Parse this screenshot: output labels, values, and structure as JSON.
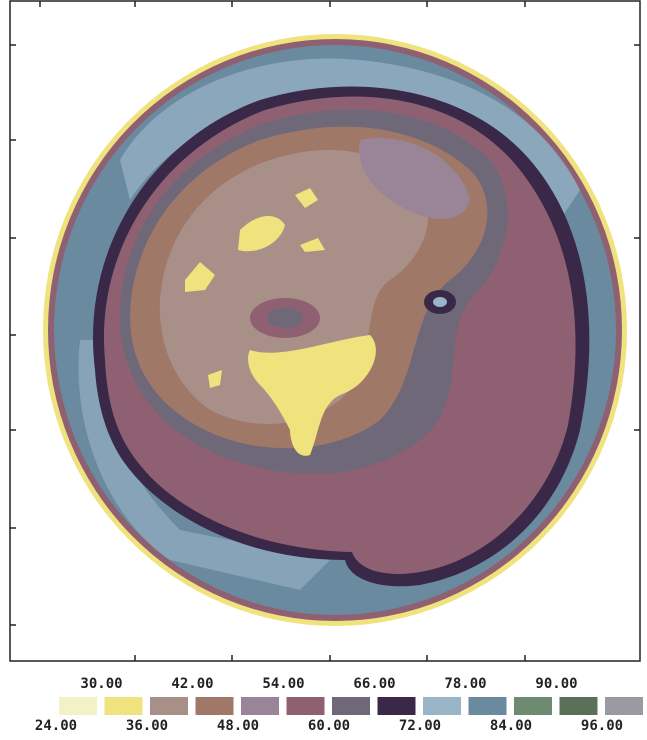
{
  "chart_data": {
    "type": "contour",
    "levels": [
      {
        "value": 24,
        "label": "24.00"
      },
      {
        "value": 30,
        "label": "30.00"
      },
      {
        "value": 36,
        "label": "36.00"
      },
      {
        "value": 42,
        "label": "42.00"
      },
      {
        "value": 48,
        "label": "48.00"
      },
      {
        "value": 54,
        "label": "54.00"
      },
      {
        "value": 60,
        "label": "60.00"
      },
      {
        "value": 66,
        "label": "66.00"
      },
      {
        "value": 72,
        "label": "72.00"
      },
      {
        "value": 78,
        "label": "78.00"
      },
      {
        "value": 84,
        "label": "84.00"
      },
      {
        "value": 90,
        "label": "90.00"
      },
      {
        "value": 96,
        "label": "96.00"
      }
    ],
    "colors": [
      "#f4f0c8",
      "#f0e27c",
      "#a89088",
      "#a07868",
      "#9a8598",
      "#8e6072",
      "#6e6878",
      "#3a2848",
      "#9ab4c8",
      "#6a8aa0",
      "#6e8a70",
      "#5a7058",
      "#9a9aa4"
    ]
  }
}
